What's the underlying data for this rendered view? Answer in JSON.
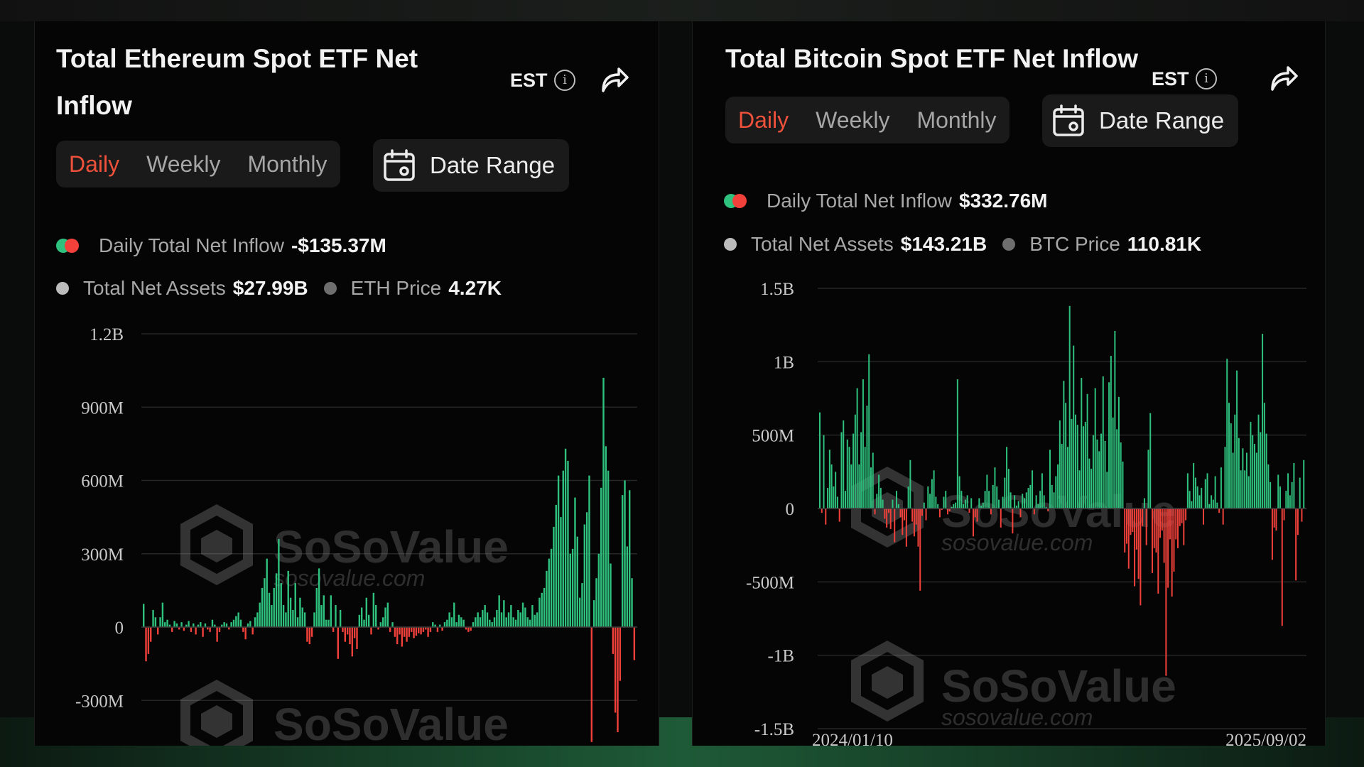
{
  "colors": {
    "positive": "#2ec27e",
    "negative": "#f2403a",
    "active_tab": "#f0513b",
    "panel_bg": "#050505"
  },
  "eth": {
    "title": "Total Ethereum Spot ETF Net Inflow",
    "timezone": "EST",
    "tabs": [
      "Daily",
      "Weekly",
      "Monthly"
    ],
    "active_tab": "Daily",
    "date_range_label": "Date Range",
    "legend_label": "Daily Total Net Inflow",
    "legend_value": "-$135.37M",
    "assets_label": "Total Net Assets",
    "assets_value": "$27.99B",
    "price_label": "ETH Price",
    "price_value": "4.27K",
    "watermark": "SoSoValue",
    "watermark_url": "sosovalue.com"
  },
  "btc": {
    "title": "Total Bitcoin Spot ETF Net Inflow",
    "timezone": "EST",
    "tabs": [
      "Daily",
      "Weekly",
      "Monthly"
    ],
    "active_tab": "Daily",
    "date_range_label": "Date Range",
    "legend_label": "Daily Total Net Inflow",
    "legend_value": "$332.76M",
    "assets_label": "Total Net Assets",
    "assets_value": "$143.21B",
    "price_label": "BTC Price",
    "price_value": "110.81K",
    "watermark": "SoSoValue",
    "watermark_url": "sosovalue.com"
  },
  "chart_data": [
    {
      "type": "bar",
      "id": "eth",
      "ylim": [
        -400,
        1200
      ],
      "unit": "M",
      "ytick_values": [
        1200,
        900,
        600,
        300,
        0,
        -300
      ],
      "ytick_labels": [
        "1.2B",
        "900M",
        "600M",
        "300M",
        "0",
        "-300M"
      ],
      "grid": true,
      "values": [
        95,
        -140,
        -110,
        -60,
        70,
        40,
        -30,
        40,
        100,
        20,
        30,
        10,
        -20,
        25,
        15,
        -10,
        20,
        -15,
        10,
        25,
        -20,
        15,
        -30,
        10,
        20,
        -40,
        15,
        -10,
        -20,
        30,
        10,
        -60,
        -20,
        10,
        20,
        15,
        -10,
        20,
        30,
        45,
        60,
        30,
        -20,
        -50,
        15,
        25,
        -30,
        40,
        60,
        100,
        160,
        200,
        280,
        140,
        90,
        160,
        220,
        360,
        180,
        90,
        60,
        230,
        120,
        70,
        180,
        40,
        120,
        80,
        60,
        -60,
        -70,
        -40,
        60,
        160,
        240,
        90,
        130,
        30,
        30,
        130,
        -20,
        90,
        -130,
        70,
        -20,
        -60,
        -30,
        -70,
        -120,
        -45,
        -90,
        50,
        80,
        30,
        120,
        50,
        -30,
        140,
        90,
        -10,
        20,
        40,
        80,
        100,
        -20,
        20,
        -40,
        -70,
        -30,
        -80,
        -40,
        -60,
        -40,
        -20,
        -45,
        -35,
        -25,
        -30,
        -20,
        -10,
        -40,
        -20,
        20,
        10,
        -20,
        10,
        -15,
        20,
        30,
        60,
        40,
        100,
        20,
        50,
        40,
        30,
        -10,
        -20,
        -15,
        20,
        40,
        60,
        40,
        70,
        90,
        60,
        30,
        20,
        40,
        70,
        130,
        60,
        110,
        40,
        60,
        90,
        40,
        30,
        70,
        60,
        100,
        80,
        40,
        30,
        90,
        50,
        60,
        120,
        140,
        160,
        230,
        280,
        320,
        410,
        500,
        620,
        450,
        640,
        730,
        680,
        300,
        320,
        530,
        370,
        120,
        180,
        420,
        470,
        620,
        -470,
        110,
        200,
        300,
        570,
        1020,
        740,
        640,
        260,
        -110,
        -350,
        -430,
        -220,
        540,
        600,
        330,
        560,
        200,
        -135
      ]
    },
    {
      "type": "bar",
      "id": "btc",
      "xlabels": [
        "2024/01/10",
        "2025/09/02"
      ],
      "ylim": [
        -1500,
        1500
      ],
      "unit": "M",
      "ytick_values": [
        1500,
        1000,
        500,
        0,
        -500,
        -1000,
        -1500
      ],
      "ytick_labels": [
        "1.5B",
        "1B",
        "500M",
        "0",
        "-500M",
        "-1B",
        "-1.5B"
      ],
      "grid": true,
      "values": [
        655,
        -30,
        500,
        -110,
        140,
        400,
        300,
        150,
        250,
        80,
        -90,
        520,
        600,
        120,
        470,
        420,
        300,
        510,
        640,
        820,
        300,
        520,
        880,
        420,
        700,
        1050,
        280,
        380,
        -40,
        100,
        230,
        140,
        60,
        -70,
        -130,
        -30,
        -140,
        60,
        -230,
        120,
        30,
        -60,
        -180,
        -80,
        -260,
        150,
        330,
        -90,
        -190,
        -110,
        -260,
        -560,
        -50,
        40,
        -80,
        150,
        100,
        200,
        260,
        80,
        30,
        -60,
        -10,
        80,
        120,
        -40,
        -20,
        10,
        30,
        40,
        880,
        220,
        120,
        30,
        60,
        90,
        -30,
        70,
        -190,
        -60,
        -90,
        70,
        20,
        40,
        120,
        230,
        120,
        -40,
        160,
        280,
        150,
        60,
        -130,
        80,
        210,
        420,
        270,
        110,
        -170,
        90,
        20,
        50,
        -60,
        100,
        70,
        110,
        140,
        160,
        260,
        -40,
        90,
        30,
        120,
        240,
        90,
        10,
        -20,
        400,
        160,
        110,
        220,
        300,
        600,
        440,
        870,
        720,
        420,
        1380,
        610,
        1110,
        640,
        570,
        260,
        890,
        560,
        590,
        780,
        340,
        270,
        500,
        820,
        470,
        390,
        510,
        900,
        460,
        250,
        860,
        1040,
        620,
        1210,
        540,
        760,
        450,
        320,
        -300,
        -240,
        -410,
        -180,
        -160,
        -530,
        -280,
        -480,
        -660,
        -120,
        70,
        -250,
        400,
        650,
        -440,
        -270,
        -300,
        -580,
        -200,
        -150,
        -370,
        -1140,
        -540,
        -210,
        -600,
        -430,
        -210,
        -270,
        -120,
        -100,
        -250,
        -80,
        240,
        120,
        50,
        310,
        210,
        150,
        90,
        140,
        -110,
        200,
        240,
        30,
        90,
        60,
        220,
        40,
        -30,
        280,
        -110,
        420,
        1020,
        720,
        580,
        380,
        640,
        940,
        480,
        260,
        410,
        260,
        380,
        220,
        590,
        500,
        440,
        380,
        640,
        520,
        1190,
        720,
        510,
        300,
        180,
        -350,
        -130,
        -150,
        230,
        150,
        -800,
        -80,
        120,
        240,
        90,
        180,
        310,
        -490,
        -180,
        210,
        -90,
        330
      ]
    }
  ]
}
